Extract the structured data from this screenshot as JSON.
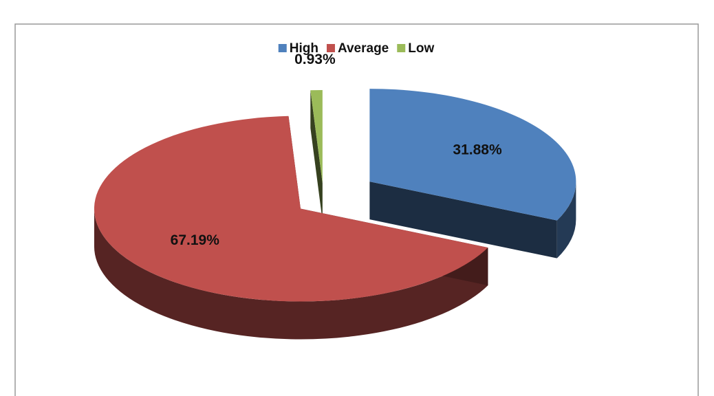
{
  "chart_data": {
    "type": "pie",
    "categories": [
      "High",
      "Average",
      "Low"
    ],
    "values": [
      31.88,
      67.19,
      0.93
    ],
    "value_labels": [
      "31.88%",
      "67.19%",
      "0.93%"
    ],
    "colors": [
      "#4f81bd",
      "#c0504d",
      "#9bbb59"
    ],
    "legend": "top"
  }
}
